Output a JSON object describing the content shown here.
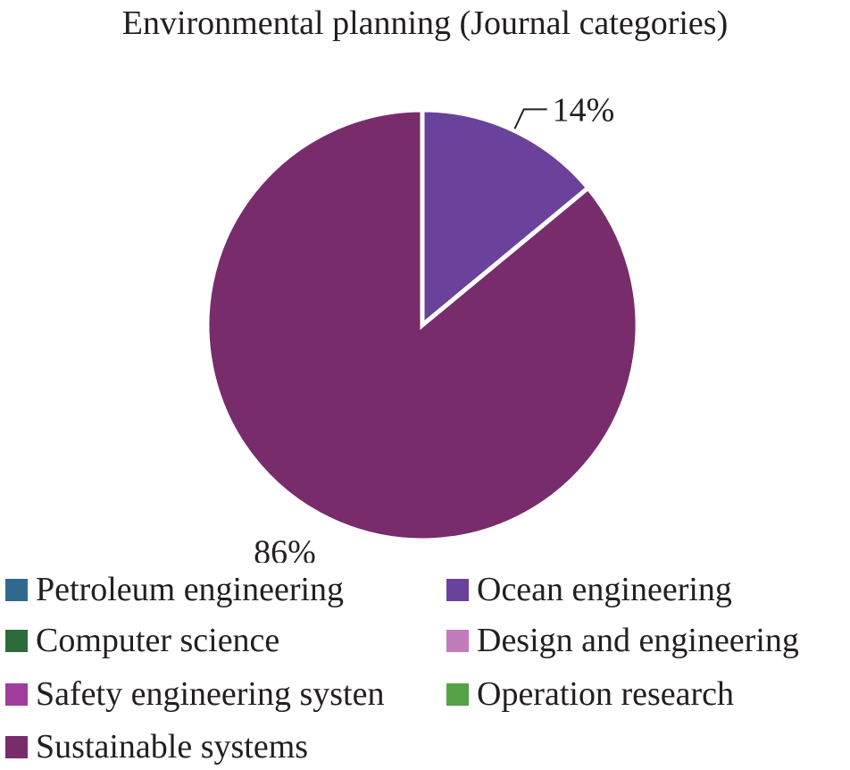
{
  "chart_data": {
    "type": "pie",
    "title": "Environmental planning (Journal categories)",
    "slices": [
      {
        "label": "Petroleum engineering",
        "value": 0,
        "color": "#2e6a8e"
      },
      {
        "label": "Ocean engineering",
        "value": 14,
        "color": "#6a419b",
        "data_label": "14%"
      },
      {
        "label": "Computer science",
        "value": 0,
        "color": "#2e6b3a"
      },
      {
        "label": "Design and engineering",
        "value": 0,
        "color": "#c27bbd"
      },
      {
        "label": "Safety engineering systen",
        "value": 0,
        "color": "#a03d9e"
      },
      {
        "label": "Operation research",
        "value": 0,
        "color": "#54a346"
      },
      {
        "label": "Sustainable systems",
        "value": 86,
        "color": "#782c6c",
        "data_label": "86%"
      }
    ],
    "legend": {
      "position": "bottom",
      "columns": 2
    },
    "start_angle_deg": 0,
    "direction": "clockwise"
  }
}
